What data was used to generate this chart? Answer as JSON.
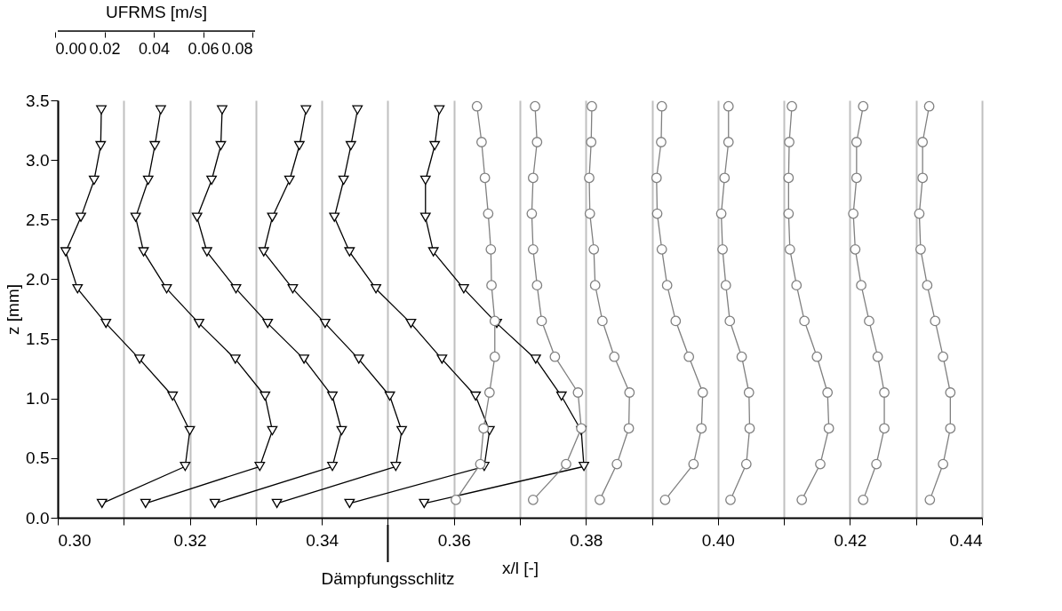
{
  "chart_data": {
    "type": "line",
    "xlabel": "x/l [-]",
    "ylabel": "z [mm]",
    "xlim": [
      0.3,
      0.44
    ],
    "xticks": [
      {
        "value": 0.3,
        "label": "0.30"
      },
      {
        "value": 0.31,
        "label": null
      },
      0.32,
      {
        "value": 0.33,
        "label": null
      },
      0.34,
      {
        "value": 0.35,
        "label": null
      },
      0.36,
      {
        "value": 0.37,
        "label": null
      },
      0.38,
      {
        "value": 0.39,
        "label": null
      },
      {
        "value": 0.4,
        "label": "0.40"
      },
      {
        "value": 0.41,
        "label": null
      },
      0.42,
      {
        "value": 0.43,
        "label": null
      },
      0.44
    ],
    "ylim": [
      0,
      3.5
    ],
    "yticks": [
      {
        "value": 0,
        "label": "0.0"
      },
      0.5,
      {
        "value": 1,
        "label": "1.0"
      },
      1.5,
      {
        "value": 2,
        "label": "2.0"
      },
      2.5,
      {
        "value": 3,
        "label": "3.0"
      },
      3.5
    ],
    "x2lim": [
      0,
      0.08
    ],
    "x2ticks": [
      {
        "value": 0,
        "label": "0.00"
      },
      0.02,
      0.04,
      0.06,
      0.08
    ],
    "x2label": "UFRMS [m/s]",
    "grid": "x",
    "legend": false,
    "line_style": "solid",
    "annotations": [
      {
        "text": "Dämpfungsschlitz",
        "x": 0.35
      }
    ],
    "series": [
      {
        "color": "#000000",
        "marker": "triangle",
        "x": [
          0.3066,
          0.3065,
          0.3055,
          0.3035,
          0.3012,
          0.303,
          0.3073,
          0.3124,
          0.3174,
          0.32,
          0.3193,
          0.3067
        ],
        "values": [
          3.42,
          3.12,
          2.83,
          2.52,
          2.23,
          1.92,
          1.63,
          1.33,
          1.02,
          0.73,
          0.43,
          0.12
        ]
      },
      {
        "color": "#000000",
        "marker": "triangle",
        "x": [
          0.3156,
          0.3147,
          0.3137,
          0.3118,
          0.313,
          0.3165,
          0.3214,
          0.3269,
          0.3314,
          0.3325,
          0.3306,
          0.3133
        ],
        "values": [
          3.42,
          3.12,
          2.83,
          2.52,
          2.23,
          1.92,
          1.63,
          1.33,
          1.02,
          0.73,
          0.43,
          0.12
        ]
      },
      {
        "color": "#000000",
        "marker": "triangle",
        "x": [
          0.3249,
          0.3247,
          0.3233,
          0.3211,
          0.3226,
          0.327,
          0.3318,
          0.3373,
          0.3416,
          0.343,
          0.3416,
          0.3238
        ],
        "values": [
          3.42,
          3.12,
          2.83,
          2.52,
          2.23,
          1.92,
          1.63,
          1.33,
          1.02,
          0.73,
          0.43,
          0.12
        ]
      },
      {
        "color": "#000000",
        "marker": "triangle",
        "x": [
          0.3376,
          0.3366,
          0.3351,
          0.3325,
          0.3312,
          0.3356,
          0.3405,
          0.3456,
          0.3503,
          0.3521,
          0.3512,
          0.3332
        ],
        "values": [
          3.42,
          3.12,
          2.83,
          2.52,
          2.23,
          1.92,
          1.63,
          1.33,
          1.02,
          0.73,
          0.43,
          0.12
        ]
      },
      {
        "color": "#000000",
        "marker": "triangle",
        "x": [
          0.3454,
          0.3444,
          0.3433,
          0.3419,
          0.3442,
          0.3482,
          0.3535,
          0.3582,
          0.3633,
          0.3654,
          0.3646,
          0.3442
        ],
        "values": [
          3.42,
          3.12,
          2.83,
          2.52,
          2.23,
          1.92,
          1.63,
          1.33,
          1.02,
          0.73,
          0.43,
          0.12
        ]
      },
      {
        "color": "#000000",
        "marker": "triangle",
        "x": [
          0.3578,
          0.3571,
          0.3557,
          0.3557,
          0.3569,
          0.3615,
          0.3665,
          0.3724,
          0.3763,
          0.3793,
          0.3797,
          0.3555
        ],
        "values": [
          3.42,
          3.12,
          2.83,
          2.52,
          2.23,
          1.92,
          1.63,
          1.33,
          1.02,
          0.73,
          0.43,
          0.12
        ]
      },
      {
        "color": "#808080",
        "marker": "circle",
        "x": [
          0.3635,
          0.3642,
          0.3647,
          0.3652,
          0.3656,
          0.3657,
          0.3662,
          0.3662,
          0.3654,
          0.3645,
          0.364,
          0.3603
        ],
        "values": [
          3.45,
          3.15,
          2.85,
          2.55,
          2.25,
          1.95,
          1.65,
          1.35,
          1.05,
          0.75,
          0.45,
          0.15
        ]
      },
      {
        "color": "#808080",
        "marker": "circle",
        "x": [
          0.3723,
          0.3726,
          0.372,
          0.3718,
          0.372,
          0.3726,
          0.3733,
          0.3753,
          0.3788,
          0.3793,
          0.377,
          0.372
        ],
        "values": [
          3.45,
          3.15,
          2.85,
          2.55,
          2.25,
          1.95,
          1.65,
          1.35,
          1.05,
          0.75,
          0.45,
          0.15
        ]
      },
      {
        "color": "#808080",
        "marker": "circle",
        "x": [
          0.3809,
          0.3808,
          0.3805,
          0.3806,
          0.3812,
          0.3814,
          0.3825,
          0.3843,
          0.3866,
          0.3865,
          0.3847,
          0.3821
        ],
        "values": [
          3.45,
          3.15,
          2.85,
          2.55,
          2.25,
          1.95,
          1.65,
          1.35,
          1.05,
          0.75,
          0.45,
          0.15
        ]
      },
      {
        "color": "#808080",
        "marker": "circle",
        "x": [
          0.3915,
          0.3914,
          0.3907,
          0.3908,
          0.3915,
          0.3923,
          0.3936,
          0.3956,
          0.3977,
          0.3975,
          0.3963,
          0.392
        ],
        "values": [
          3.45,
          3.15,
          2.85,
          2.55,
          2.25,
          1.95,
          1.65,
          1.35,
          1.05,
          0.75,
          0.45,
          0.15
        ]
      },
      {
        "color": "#808080",
        "marker": "circle",
        "x": [
          0.4016,
          0.4016,
          0.401,
          0.4005,
          0.4007,
          0.4012,
          0.4018,
          0.4036,
          0.4047,
          0.4048,
          0.4043,
          0.4019
        ],
        "values": [
          3.45,
          3.15,
          2.85,
          2.55,
          2.25,
          1.95,
          1.65,
          1.35,
          1.05,
          0.75,
          0.45,
          0.15
        ]
      },
      {
        "color": "#808080",
        "marker": "circle",
        "x": [
          0.4112,
          0.4108,
          0.4107,
          0.4107,
          0.4109,
          0.4119,
          0.4131,
          0.415,
          0.4166,
          0.4168,
          0.4155,
          0.4127
        ],
        "values": [
          3.45,
          3.15,
          2.85,
          2.55,
          2.25,
          1.95,
          1.65,
          1.35,
          1.05,
          0.75,
          0.45,
          0.15
        ]
      },
      {
        "color": "#808080",
        "marker": "circle",
        "x": [
          0.422,
          0.421,
          0.421,
          0.4205,
          0.4208,
          0.4217,
          0.4229,
          0.4242,
          0.4252,
          0.4252,
          0.424,
          0.422
        ],
        "values": [
          3.45,
          3.15,
          2.85,
          2.55,
          2.25,
          1.95,
          1.65,
          1.35,
          1.05,
          0.75,
          0.45,
          0.15
        ]
      },
      {
        "color": "#808080",
        "marker": "circle",
        "x": [
          0.432,
          0.431,
          0.431,
          0.4305,
          0.4307,
          0.4317,
          0.4329,
          0.4341,
          0.4352,
          0.4352,
          0.4341,
          0.4321
        ],
        "values": [
          3.45,
          3.15,
          2.85,
          2.55,
          2.25,
          1.95,
          1.65,
          1.35,
          1.05,
          0.75,
          0.45,
          0.15
        ]
      }
    ]
  }
}
